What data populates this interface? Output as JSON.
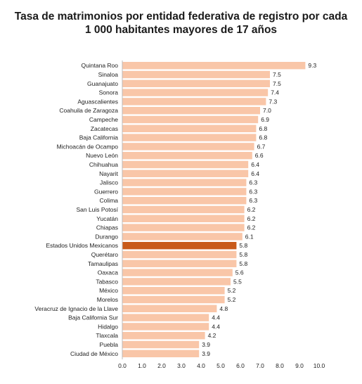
{
  "chart_data": {
    "type": "bar",
    "orientation": "horizontal",
    "title_line1": "Tasa de matrimonios por entidad federativa de registro por cada",
    "title_line2": "1 000 habitantes mayores de 17 años",
    "categories": [
      "Quintana Roo",
      "Sinaloa",
      "Guanajuato",
      "Sonora",
      "Aguascalientes",
      "Coahuila de Zaragoza",
      "Campeche",
      "Zacatecas",
      "Baja California",
      "Michoacán de Ocampo",
      "Nuevo León",
      "Chihuahua",
      "Nayarit",
      "Jalisco",
      "Guerrero",
      "Colima",
      "San Luis Potosí",
      "Yucatán",
      "Chiapas",
      "Durango",
      "Estados Unidos Mexicanos",
      "Querétaro",
      "Tamaulipas",
      "Oaxaca",
      "Tabasco",
      "México",
      "Morelos",
      "Veracruz de Ignacio de la Llave",
      "Baja California Sur",
      "Hidalgo",
      "Tlaxcala",
      "Puebla",
      "Ciudad de México"
    ],
    "values": [
      9.3,
      7.5,
      7.5,
      7.4,
      7.3,
      7.0,
      6.9,
      6.8,
      6.8,
      6.7,
      6.6,
      6.4,
      6.4,
      6.3,
      6.3,
      6.3,
      6.2,
      6.2,
      6.2,
      6.1,
      5.8,
      5.8,
      5.8,
      5.6,
      5.5,
      5.2,
      5.2,
      4.8,
      4.4,
      4.4,
      4.2,
      3.9,
      3.9
    ],
    "value_labels": [
      "9.3",
      "7.5",
      "7.5",
      "7.4",
      "7.3",
      "7.0",
      "6.9",
      "6.8",
      "6.8",
      "6.7",
      "6.6",
      "6.4",
      "6.4",
      "6.3",
      "6.3",
      "6.3",
      "6.2",
      "6.2",
      "6.2",
      "6.1",
      "5.8",
      "5.8",
      "5.8",
      "5.6",
      "5.5",
      "5.2",
      "5.2",
      "4.8",
      "4.4",
      "4.4",
      "4.2",
      "3.9",
      "3.9"
    ],
    "highlight_category": "Estados Unidos Mexicanos",
    "xlim": [
      0,
      10
    ],
    "x_ticks": [
      "0.0",
      "1.0",
      "2.0",
      "3.0",
      "4.0",
      "5.0",
      "6.0",
      "7.0",
      "8.0",
      "9.0",
      "10.0"
    ],
    "grid": false,
    "colors": {
      "bar": "#f9c6a8",
      "highlight": "#c85a1a",
      "axis": "#bbbbbb"
    }
  }
}
